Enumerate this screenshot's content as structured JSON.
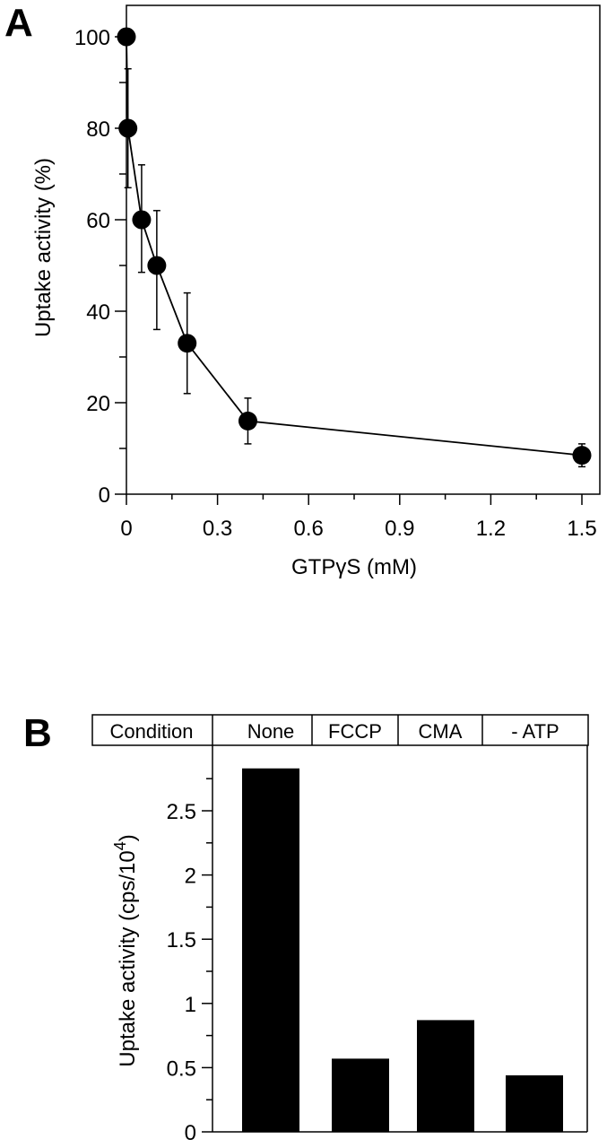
{
  "chart_data": [
    {
      "panel": "A",
      "type": "line",
      "title": "",
      "xlabel": "GTPγS (mM)",
      "ylabel": "Uptake activity  (%)",
      "xlim": [
        0,
        1.5
      ],
      "ylim": [
        0,
        100
      ],
      "x_ticks": [
        "0",
        "0.3",
        "0.6",
        "0.9",
        "1.2",
        "1.5"
      ],
      "x_tick_values": [
        0,
        0.3,
        0.6,
        0.9,
        1.2,
        1.5
      ],
      "x_minor_step": 0.15,
      "y_ticks": [
        "0",
        "20",
        "40",
        "60",
        "80",
        "100"
      ],
      "y_tick_values": [
        0,
        20,
        40,
        60,
        80,
        100
      ],
      "y_minor_step": 10,
      "grid": false,
      "series": [
        {
          "name": "Uptake activity",
          "marker": "filled-circle",
          "color": "#000000",
          "x": [
            0,
            0.005,
            0.05,
            0.1,
            0.2,
            0.4,
            1.5
          ],
          "y": [
            100,
            80,
            60,
            50,
            33,
            16,
            8.5
          ],
          "error_low": [
            null,
            67,
            48.5,
            36,
            22,
            11,
            6
          ],
          "error_high": [
            null,
            93,
            72,
            62,
            44,
            21,
            11
          ]
        }
      ]
    },
    {
      "panel": "B",
      "type": "bar",
      "title": "",
      "header_label": "Condition",
      "categories": [
        "None",
        "FCCP",
        "CMA",
        "- ATP"
      ],
      "values": [
        2.83,
        0.57,
        0.87,
        0.44
      ],
      "ylabel": "Uptake activity  (cps/10",
      "ylabel_superscript": "4",
      "ylabel_close": ")",
      "ylim": [
        0,
        2.9
      ],
      "y_ticks": [
        "0",
        "0.5",
        "1",
        "1.5",
        "2",
        "2.5"
      ],
      "y_tick_values": [
        0,
        0.5,
        1,
        1.5,
        2,
        2.5
      ],
      "y_minor_step": 0.25,
      "bar_color": "#000000",
      "grid": false
    }
  ],
  "panels": {
    "a_letter": "A",
    "b_letter": "B"
  }
}
